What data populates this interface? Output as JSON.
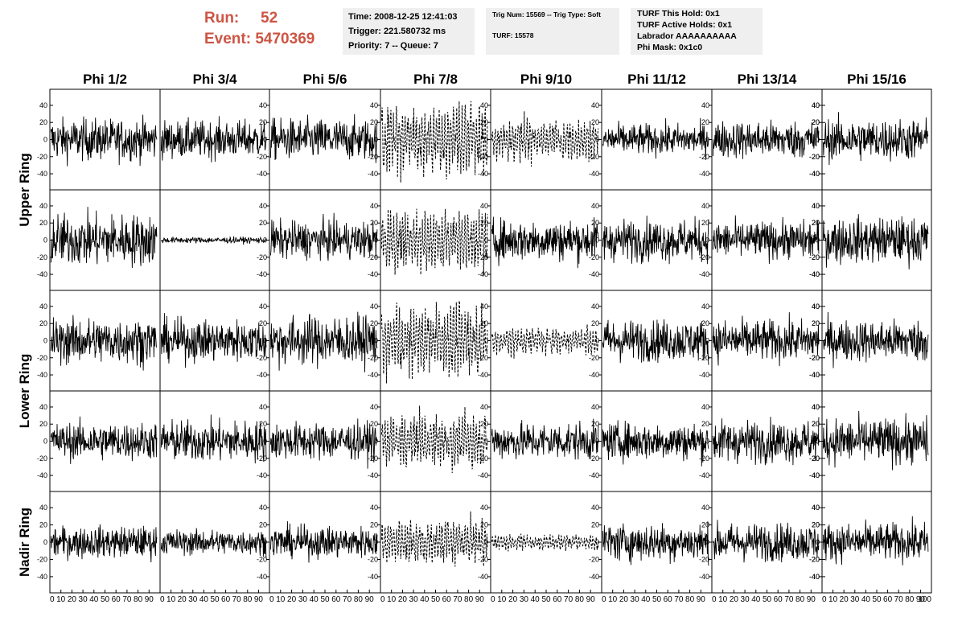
{
  "header": {
    "run_label": "Run:",
    "run_value": "52",
    "event_label": "Event:",
    "event_value": "5470369",
    "accent_color": "#cc5544"
  },
  "info_box_1": {
    "time": "Time: 2008-12-25 12:41:03",
    "trigger": "Trigger: 221.580732 ms",
    "priority": "Priority: 7 -- Queue: 7"
  },
  "info_box_2": {
    "trig": "Trig Num: 15569 -- Trig Type: Soft",
    "turf": "TURF: 15578"
  },
  "info_box_3": {
    "this_hold": "TURF This Hold: 0x1",
    "active_holds": "TURF Active Holds: 0x1",
    "labrador": "Labrador AAAAAAAAAA",
    "phi_mask": "Phi Mask: 0x1c0"
  },
  "chart_data": {
    "type": "line",
    "layout": "grid of waveform panels, 8 columns x 5 rows",
    "column_titles": [
      "Phi 1/2",
      "Phi 3/4",
      "Phi 5/6",
      "Phi 7/8",
      "Phi 9/10",
      "Phi 11/12",
      "Phi 13/14",
      "Phi 15/16"
    ],
    "row_titles": [
      {
        "label": "Upper Ring",
        "spans_rows": 2
      },
      {
        "label": "Lower Ring",
        "spans_rows": 2
      },
      {
        "label": "Nadir Ring",
        "spans_rows": 1
      }
    ],
    "xlim": [
      0,
      100
    ],
    "ylim": [
      -55,
      55
    ],
    "y_ticks": [
      -40,
      -20,
      0,
      20,
      40
    ],
    "x_tick_labels": [
      "0",
      "10",
      "20",
      "30",
      "40",
      "50",
      "60",
      "70",
      "80",
      "90",
      "100"
    ],
    "series_style": "solid black line; dashed in masked phi sectors (Phi 7/8, and Phi 9/10 in rows 1, 3 and 5)",
    "amplitude": [
      [
        20,
        18,
        20,
        38,
        20,
        15,
        18,
        20
      ],
      [
        25,
        3,
        18,
        30,
        20,
        20,
        18,
        22
      ],
      [
        22,
        20,
        24,
        35,
        14,
        20,
        20,
        20
      ],
      [
        18,
        20,
        18,
        25,
        18,
        18,
        20,
        22
      ],
      [
        15,
        12,
        15,
        22,
        8,
        18,
        18,
        18
      ]
    ],
    "dashed": [
      [
        false,
        false,
        false,
        true,
        true,
        false,
        false,
        false
      ],
      [
        false,
        false,
        false,
        true,
        false,
        false,
        false,
        false
      ],
      [
        false,
        false,
        false,
        true,
        true,
        false,
        false,
        false
      ],
      [
        false,
        false,
        false,
        true,
        false,
        false,
        false,
        false
      ],
      [
        false,
        false,
        false,
        true,
        true,
        false,
        false,
        false
      ]
    ]
  }
}
